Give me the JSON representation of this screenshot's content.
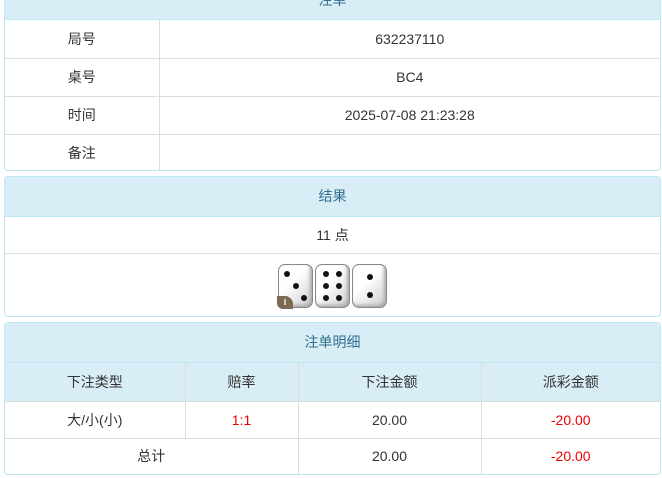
{
  "bet": {
    "title": "注单",
    "rows": [
      {
        "label": "局号",
        "value": "632237110"
      },
      {
        "label": "桌号",
        "value": "BC4"
      },
      {
        "label": "时间",
        "value": "2025-07-08 21:23:28"
      },
      {
        "label": "备注",
        "value": ""
      }
    ]
  },
  "result": {
    "title": "结果",
    "points": "11 点",
    "dice": [
      3,
      6,
      2
    ],
    "badge": "i"
  },
  "detail": {
    "title": "注单明细",
    "headers": [
      "下注类型",
      "赔率",
      "下注金额",
      "派彩金额"
    ],
    "rows": [
      {
        "type": "大/小(小)",
        "odds": "1:1",
        "amount": "20.00",
        "payout": "-20.00"
      }
    ],
    "total": {
      "label": "总计",
      "amount": "20.00",
      "payout": "-20.00"
    }
  },
  "colors": {
    "header_bg": "#d9edf7",
    "header_text": "#31708f",
    "negative": "#e00000"
  }
}
